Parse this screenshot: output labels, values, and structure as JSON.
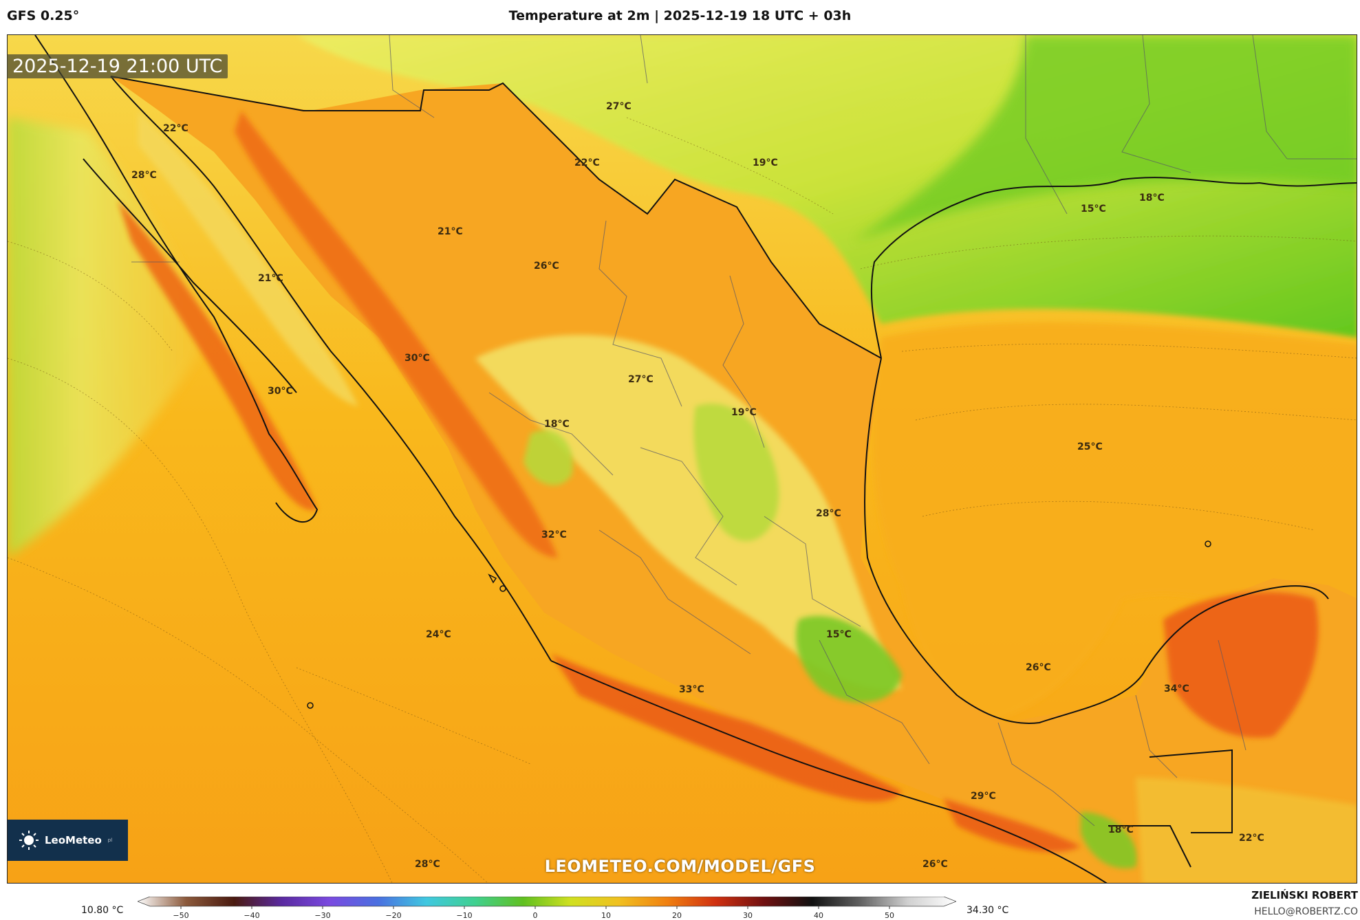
{
  "header": {
    "model": "GFS 0.25°",
    "title": "Temperature at 2m | 2025-12-19 18 UTC + 03h"
  },
  "map": {
    "valid_time": "2025-12-19 21:00 UTC",
    "watermark": "LEOMETEO.COM/MODEL/GFS",
    "brand": "LeoMeteo",
    "brand_sub": "pl",
    "labels": [
      {
        "text": "22°C"
      },
      {
        "text": "28°C"
      },
      {
        "text": "21°C"
      },
      {
        "text": "30°C"
      },
      {
        "text": "21°C"
      },
      {
        "text": "22°C"
      },
      {
        "text": "27°C"
      },
      {
        "text": "19°C"
      },
      {
        "text": "26°C"
      },
      {
        "text": "30°C"
      },
      {
        "text": "27°C"
      },
      {
        "text": "18°C"
      },
      {
        "text": "19°C"
      },
      {
        "text": "15°C"
      },
      {
        "text": "18°C"
      },
      {
        "text": "25°C"
      },
      {
        "text": "28°C"
      },
      {
        "text": "32°C"
      },
      {
        "text": "24°C"
      },
      {
        "text": "15°C"
      },
      {
        "text": "33°C"
      },
      {
        "text": "26°C"
      },
      {
        "text": "34°C"
      },
      {
        "text": "29°C"
      },
      {
        "text": "18°C"
      },
      {
        "text": "22°C"
      },
      {
        "text": "28°C"
      },
      {
        "text": "26°C"
      }
    ]
  },
  "colors": {
    "sea": "#f9b21c",
    "land_hot": "#f07b1a",
    "land_warm": "#f7a922",
    "cool": "#f5e160",
    "cold": "#9ed62c",
    "green": "#58c81f",
    "border": "#111111",
    "brand_bg": "#12304c"
  },
  "scale": {
    "min_label": "10.80 °C",
    "max_label": "34.30 °C",
    "ticks": [
      "−50",
      "−40",
      "−30",
      "−20",
      "−10",
      "0",
      "10",
      "20",
      "30",
      "40",
      "50"
    ],
    "stops": [
      "#ffffff",
      "#8c5a3c",
      "#4a1a10",
      "#5a2aa0",
      "#7a4ae0",
      "#4a70e0",
      "#40c8e0",
      "#40d090",
      "#60c020",
      "#d0e020",
      "#f0c020",
      "#f08010",
      "#d03010",
      "#701010",
      "#101010",
      "#606060",
      "#d0d0d0",
      "#ffffff"
    ]
  },
  "footer": {
    "author": "ZIELIŃSKI ROBERT",
    "email": "HELLO@ROBERTZ.CO"
  }
}
